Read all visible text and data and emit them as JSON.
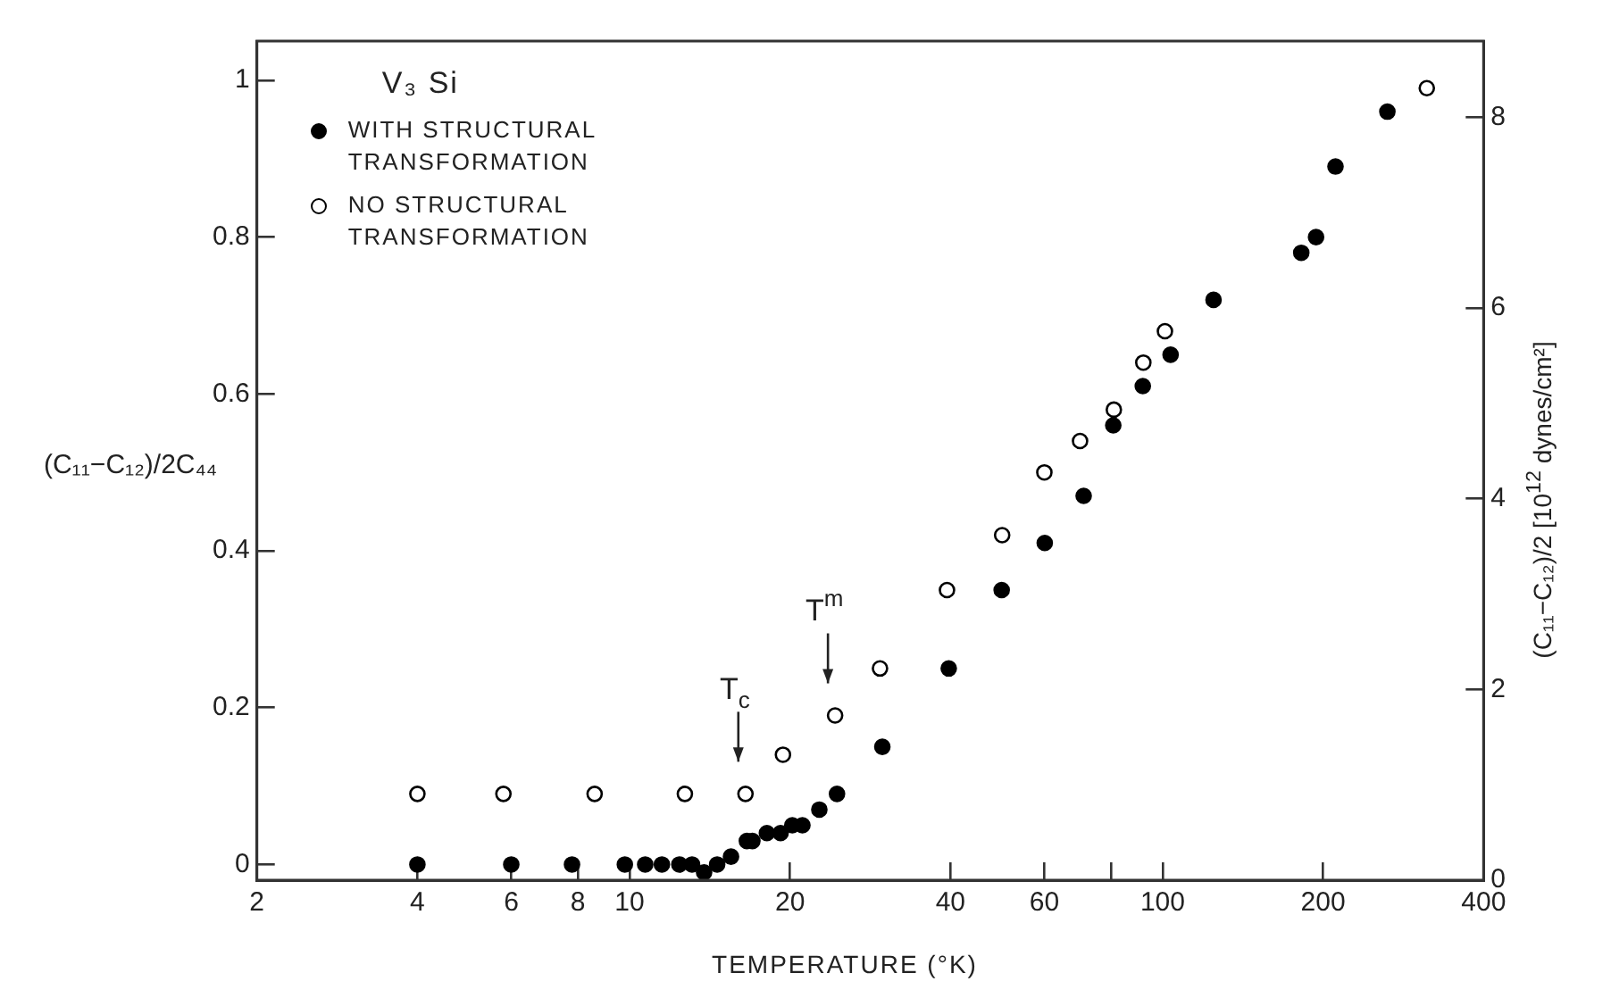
{
  "chart_data": {
    "type": "scatter",
    "xlabel": "TEMPERATURE (°K)",
    "ylabel": "(C₁₁−C₁₂)/2C₄₄",
    "y2label": "(C₁₁−C₁₂)/2 [10$^{12}$ dynes/cm²]",
    "legend_title": "V₃ Si",
    "log": "x",
    "xlim": [
      2,
      400
    ],
    "xticks": [
      2,
      4,
      6,
      8,
      10,
      20,
      40,
      60,
      {
        "value": 80,
        "label": null
      },
      100,
      200,
      400
    ],
    "ylim": [
      -0.02,
      1.05
    ],
    "yticks": [
      0,
      0.2,
      0.4,
      0.6,
      0.8,
      1.0
    ],
    "y2lim": [
      0,
      8.8
    ],
    "y2ticks": [
      0,
      2,
      4,
      6,
      8
    ],
    "grid": false,
    "legend": "top left",
    "marker": "circle",
    "annotations": [
      {
        "text": "T$_{c}$",
        "x": 16.5,
        "y": 0.09
      },
      {
        "text": "T$^{m}$",
        "x": 24.3,
        "y": 0.19
      }
    ],
    "series": [
      {
        "name": "WITH STRUCTURAL TRANSFORMATION",
        "color": "#000000",
        "x": [
          4.0,
          6.0,
          7.8,
          9.8,
          10.7,
          11.5,
          12.4,
          13.1,
          13.8,
          14.6,
          15.5,
          16.6,
          17.0,
          18.1,
          19.2,
          20.2,
          21.1,
          22.7,
          24.5,
          29.8,
          39.7,
          49.9,
          60.1,
          71.1,
          80.8,
          91.8,
          103.5,
          124.6,
          182,
          194,
          211,
          264
        ],
        "values": [
          0,
          0,
          0,
          0,
          0,
          0,
          0,
          0,
          -0.01,
          0,
          0.01,
          0.03,
          0.03,
          0.04,
          0.04,
          0.05,
          0.05,
          0.07,
          0.09,
          0.15,
          0.25,
          0.35,
          0.41,
          0.47,
          0.56,
          0.61,
          0.65,
          0.72,
          0.78,
          0.8,
          0.89,
          0.96
        ]
      },
      {
        "name": "NO STRUCTURAL TRANSFORMATION",
        "color": "#000000",
        "x": [
          4.0,
          5.8,
          8.6,
          12.7,
          16.5,
          19.4,
          24.3,
          29.5,
          39.4,
          50,
          60,
          70,
          81,
          92,
          101,
          313
        ],
        "values": [
          0.09,
          0.09,
          0.09,
          0.09,
          0.09,
          0.14,
          0.19,
          0.25,
          0.35,
          0.42,
          0.5,
          0.54,
          0.58,
          0.64,
          0.68,
          0.99
        ]
      }
    ]
  }
}
